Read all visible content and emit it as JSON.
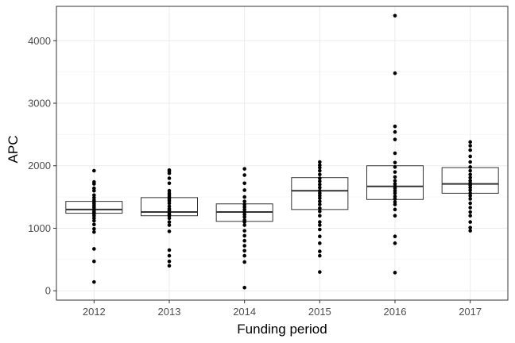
{
  "chart_data": {
    "type": "box",
    "title": "",
    "xlabel": "Funding period",
    "ylabel": "APC",
    "ylim": [
      -150,
      4550
    ],
    "yticks": [
      0,
      1000,
      2000,
      3000,
      4000
    ],
    "grid": true,
    "categories": [
      "2012",
      "2013",
      "2014",
      "2015",
      "2016",
      "2017"
    ],
    "boxes": [
      {
        "category": "2012",
        "q1": 1240,
        "median": 1300,
        "q3": 1430,
        "whisker_low": 1240,
        "whisker_high": 1430,
        "points": [
          1920,
          1740,
          1710,
          1640,
          1600,
          1530,
          1490,
          1450,
          1420,
          1390,
          1360,
          1330,
          1300,
          1270,
          1250,
          1230,
          1200,
          1160,
          1120,
          1060,
          990,
          940,
          670,
          470,
          140
        ]
      },
      {
        "category": "2013",
        "q1": 1200,
        "median": 1260,
        "q3": 1490,
        "whisker_low": 1200,
        "whisker_high": 1490,
        "points": [
          1930,
          1910,
          1880,
          1800,
          1720,
          1600,
          1560,
          1530,
          1500,
          1470,
          1440,
          1400,
          1350,
          1310,
          1280,
          1250,
          1220,
          1200,
          1160,
          1100,
          1050,
          950,
          650,
          560,
          470,
          400
        ]
      },
      {
        "category": "2014",
        "q1": 1110,
        "median": 1260,
        "q3": 1390,
        "whisker_low": 1110,
        "whisker_high": 1390,
        "points": [
          1950,
          1850,
          1720,
          1610,
          1500,
          1430,
          1380,
          1340,
          1300,
          1260,
          1220,
          1180,
          1130,
          1100,
          1050,
          960,
          880,
          800,
          720,
          640,
          560,
          460,
          50
        ]
      },
      {
        "category": "2015",
        "q1": 1300,
        "median": 1600,
        "q3": 1810,
        "whisker_low": 1300,
        "whisker_high": 1810,
        "points": [
          2060,
          2010,
          1970,
          1920,
          1860,
          1800,
          1750,
          1700,
          1650,
          1600,
          1560,
          1520,
          1480,
          1430,
          1380,
          1320,
          1270,
          1200,
          1100,
          1050,
          980,
          870,
          760,
          630,
          560,
          300
        ]
      },
      {
        "category": "2016",
        "q1": 1460,
        "median": 1670,
        "q3": 2000,
        "whisker_low": 1460,
        "whisker_high": 2000,
        "points": [
          4400,
          3480,
          2630,
          2540,
          2420,
          2200,
          2050,
          1980,
          1900,
          1820,
          1760,
          1710,
          1670,
          1640,
          1600,
          1560,
          1510,
          1470,
          1420,
          1380,
          1300,
          1200,
          870,
          760,
          290
        ]
      },
      {
        "category": "2017",
        "q1": 1560,
        "median": 1710,
        "q3": 1970,
        "whisker_low": 1560,
        "whisker_high": 1970,
        "points": [
          2380,
          2320,
          2250,
          2150,
          2060,
          1980,
          1920,
          1860,
          1810,
          1760,
          1720,
          1690,
          1650,
          1610,
          1560,
          1520,
          1470,
          1400,
          1330,
          1260,
          1200,
          1100,
          1010,
          960
        ]
      }
    ]
  }
}
